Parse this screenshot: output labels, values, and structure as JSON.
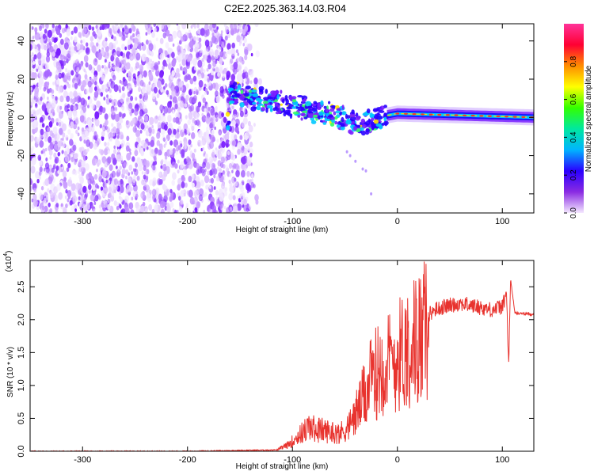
{
  "title": "C2E2.2025.363.14.03.R04",
  "chart_data": [
    {
      "type": "heatmap",
      "xlabel": "Height of straight line (km)",
      "ylabel": "Frequency (Hz)",
      "xlim": [
        -350,
        130
      ],
      "ylim": [
        -50,
        49
      ],
      "xticks": [
        -300,
        -200,
        -100,
        0,
        100
      ],
      "yticks": [
        -40,
        -20,
        0,
        20,
        40
      ],
      "colorbar": {
        "label": "Normalized spectral amplitude",
        "range": [
          0,
          1
        ],
        "ticks": [
          "0.0",
          "0.2",
          "0.4",
          "0.6",
          "0.8"
        ],
        "colors": [
          "#f4e8ff",
          "#8a2be2",
          "#2a00ff",
          "#00b4ff",
          "#00e8a0",
          "#33ff00",
          "#ffff00",
          "#ff8c00",
          "#ff0033",
          "#ff3399"
        ]
      },
      "regions": [
        {
          "name": "noise",
          "x": [
            -350,
            -138
          ],
          "y": [
            -50,
            49
          ]
        },
        {
          "name": "signal_band",
          "trend": [
            [
              -160,
              13
            ],
            [
              -120,
              8
            ],
            [
              -80,
              4
            ],
            [
              -55,
              0
            ],
            [
              -35,
              -4
            ],
            [
              -10,
              1
            ],
            [
              0,
              2
            ],
            [
              130,
              0
            ]
          ]
        }
      ]
    },
    {
      "type": "line",
      "xlabel": "Height of straight line (km)",
      "ylabel": "SNR (10 * v/v)",
      "yscale_label": "(x10",
      "yscale_exp": "4",
      "xlim": [
        -350,
        130
      ],
      "ylim": [
        0,
        2.9
      ],
      "xticks": [
        -300,
        -200,
        -100,
        0,
        100
      ],
      "yticks": [
        "0.0",
        "0.5",
        "1.0",
        "1.5",
        "2.0",
        "2.5"
      ],
      "series": [
        {
          "name": "SNR",
          "color": "#e8332e",
          "x": [
            -350,
            -200,
            -115,
            -105,
            -95,
            -85,
            -70,
            -55,
            -45,
            -35,
            -25,
            -15,
            -5,
            5,
            15,
            25,
            35,
            45,
            60,
            75,
            90,
            100,
            104,
            106,
            108,
            112,
            130
          ],
          "y": [
            0.0,
            0.0,
            0.02,
            0.1,
            0.25,
            0.4,
            0.35,
            0.3,
            0.45,
            0.8,
            1.2,
            1.45,
            1.5,
            1.7,
            1.85,
            2.0,
            2.15,
            2.2,
            2.25,
            2.2,
            2.15,
            2.2,
            2.4,
            1.3,
            2.6,
            2.1,
            2.08
          ]
        }
      ]
    }
  ]
}
